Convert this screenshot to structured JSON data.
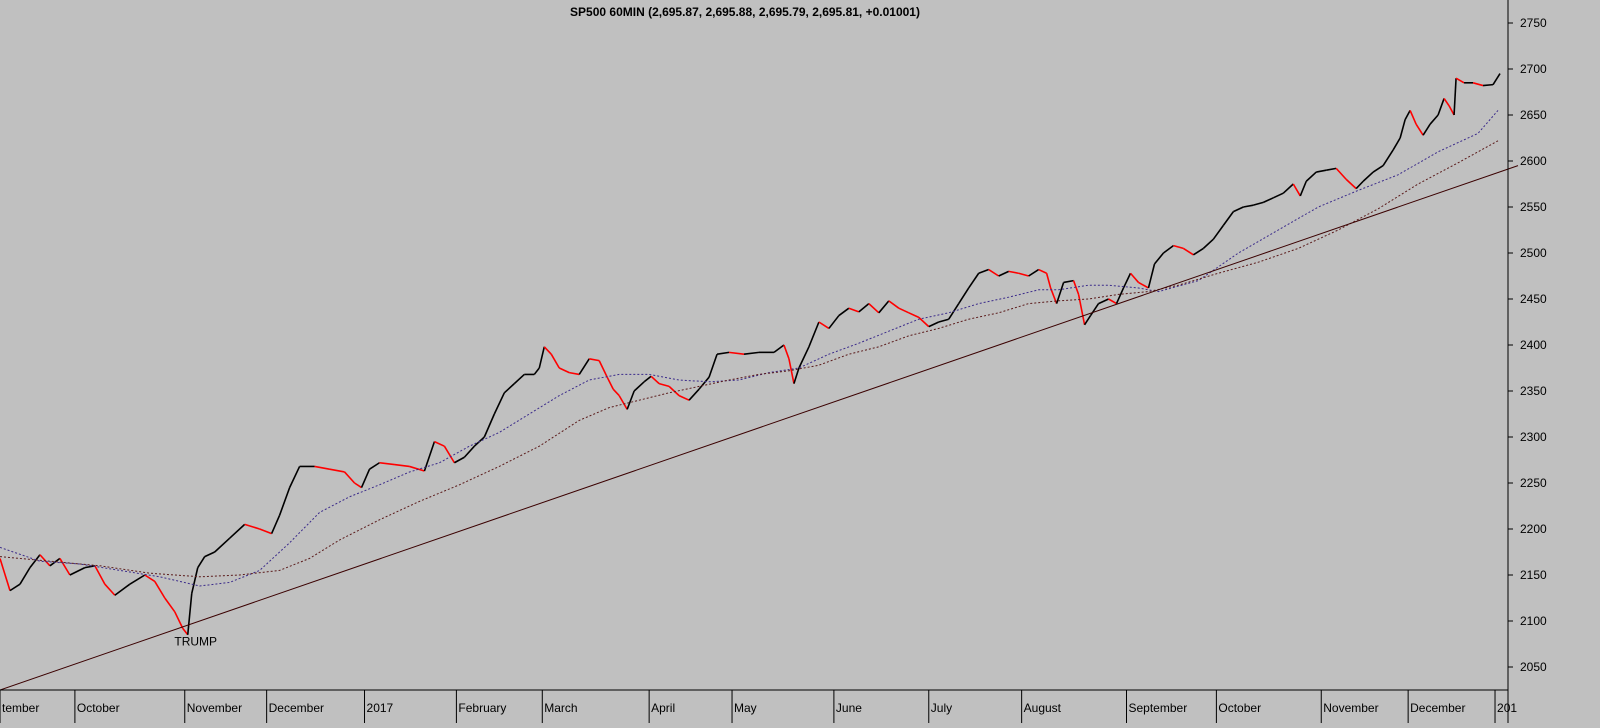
{
  "chart_data": {
    "type": "line",
    "title": "SP500 60MIN (2,695.87, 2,695.88, 2,695.79, 2,695.81, +0.01001)",
    "xlabel": "",
    "ylabel": "",
    "ylim": [
      2025,
      2775
    ],
    "yticks": [
      2050,
      2100,
      2150,
      2200,
      2250,
      2300,
      2350,
      2400,
      2450,
      2500,
      2550,
      2600,
      2650,
      2700,
      2750
    ],
    "grid": false,
    "legend": "none",
    "x_range": [
      0,
      1510
    ],
    "months": [
      {
        "label": "tember",
        "x": 0
      },
      {
        "label": "October",
        "x": 75
      },
      {
        "label": "November",
        "x": 185
      },
      {
        "label": "December",
        "x": 267
      },
      {
        "label": "2017",
        "x": 365
      },
      {
        "label": "February",
        "x": 457
      },
      {
        "label": "March",
        "x": 543
      },
      {
        "label": "April",
        "x": 650
      },
      {
        "label": "May",
        "x": 733
      },
      {
        "label": "June",
        "x": 835
      },
      {
        "label": "July",
        "x": 930
      },
      {
        "label": "August",
        "x": 1023
      },
      {
        "label": "September",
        "x": 1128
      },
      {
        "label": "October",
        "x": 1218
      },
      {
        "label": "November",
        "x": 1323
      },
      {
        "label": "December",
        "x": 1410
      },
      {
        "label": "201",
        "x": 1497
      }
    ],
    "series": [
      {
        "kind": "price",
        "color": "#000000",
        "down_color": "#ff0000",
        "points": [
          [
            0,
            2168
          ],
          [
            10,
            2133
          ],
          [
            20,
            2140
          ],
          [
            30,
            2158
          ],
          [
            40,
            2172
          ],
          [
            50,
            2160
          ],
          [
            60,
            2168
          ],
          [
            70,
            2150
          ],
          [
            85,
            2158
          ],
          [
            95,
            2160
          ],
          [
            105,
            2140
          ],
          [
            115,
            2128
          ],
          [
            130,
            2140
          ],
          [
            145,
            2150
          ],
          [
            155,
            2143
          ],
          [
            165,
            2125
          ],
          [
            175,
            2110
          ],
          [
            183,
            2092
          ],
          [
            188,
            2085
          ],
          [
            192,
            2130
          ],
          [
            198,
            2158
          ],
          [
            205,
            2170
          ],
          [
            215,
            2175
          ],
          [
            230,
            2190
          ],
          [
            245,
            2205
          ],
          [
            260,
            2200
          ],
          [
            272,
            2195
          ],
          [
            280,
            2215
          ],
          [
            290,
            2245
          ],
          [
            300,
            2268
          ],
          [
            315,
            2268
          ],
          [
            330,
            2265
          ],
          [
            345,
            2262
          ],
          [
            355,
            2250
          ],
          [
            362,
            2245
          ],
          [
            370,
            2265
          ],
          [
            380,
            2272
          ],
          [
            395,
            2270
          ],
          [
            410,
            2268
          ],
          [
            425,
            2263
          ],
          [
            435,
            2295
          ],
          [
            445,
            2290
          ],
          [
            455,
            2272
          ],
          [
            465,
            2278
          ],
          [
            475,
            2290
          ],
          [
            485,
            2300
          ],
          [
            495,
            2325
          ],
          [
            505,
            2348
          ],
          [
            515,
            2358
          ],
          [
            525,
            2368
          ],
          [
            535,
            2368
          ],
          [
            540,
            2375
          ],
          [
            545,
            2398
          ],
          [
            552,
            2390
          ],
          [
            560,
            2375
          ],
          [
            570,
            2370
          ],
          [
            580,
            2368
          ],
          [
            590,
            2385
          ],
          [
            600,
            2383
          ],
          [
            608,
            2365
          ],
          [
            614,
            2352
          ],
          [
            620,
            2345
          ],
          [
            628,
            2330
          ],
          [
            635,
            2350
          ],
          [
            645,
            2360
          ],
          [
            652,
            2366
          ],
          [
            660,
            2358
          ],
          [
            670,
            2355
          ],
          [
            680,
            2345
          ],
          [
            690,
            2340
          ],
          [
            700,
            2352
          ],
          [
            710,
            2365
          ],
          [
            718,
            2390
          ],
          [
            730,
            2392
          ],
          [
            745,
            2390
          ],
          [
            760,
            2392
          ],
          [
            775,
            2392
          ],
          [
            785,
            2400
          ],
          [
            790,
            2385
          ],
          [
            795,
            2358
          ],
          [
            800,
            2375
          ],
          [
            810,
            2398
          ],
          [
            820,
            2425
          ],
          [
            830,
            2418
          ],
          [
            840,
            2432
          ],
          [
            850,
            2440
          ],
          [
            860,
            2436
          ],
          [
            870,
            2445
          ],
          [
            880,
            2435
          ],
          [
            890,
            2448
          ],
          [
            900,
            2440
          ],
          [
            910,
            2435
          ],
          [
            920,
            2430
          ],
          [
            930,
            2420
          ],
          [
            940,
            2425
          ],
          [
            950,
            2428
          ],
          [
            960,
            2445
          ],
          [
            970,
            2462
          ],
          [
            980,
            2478
          ],
          [
            990,
            2482
          ],
          [
            1000,
            2475
          ],
          [
            1010,
            2480
          ],
          [
            1020,
            2478
          ],
          [
            1030,
            2475
          ],
          [
            1040,
            2482
          ],
          [
            1048,
            2478
          ],
          [
            1052,
            2462
          ],
          [
            1058,
            2445
          ],
          [
            1065,
            2468
          ],
          [
            1075,
            2470
          ],
          [
            1080,
            2455
          ],
          [
            1086,
            2422
          ],
          [
            1092,
            2432
          ],
          [
            1100,
            2445
          ],
          [
            1110,
            2450
          ],
          [
            1118,
            2445
          ],
          [
            1125,
            2462
          ],
          [
            1132,
            2478
          ],
          [
            1140,
            2468
          ],
          [
            1150,
            2462
          ],
          [
            1156,
            2488
          ],
          [
            1165,
            2500
          ],
          [
            1175,
            2508
          ],
          [
            1185,
            2505
          ],
          [
            1195,
            2498
          ],
          [
            1205,
            2505
          ],
          [
            1215,
            2515
          ],
          [
            1225,
            2530
          ],
          [
            1235,
            2545
          ],
          [
            1245,
            2550
          ],
          [
            1255,
            2552
          ],
          [
            1265,
            2555
          ],
          [
            1275,
            2560
          ],
          [
            1285,
            2565
          ],
          [
            1295,
            2575
          ],
          [
            1302,
            2562
          ],
          [
            1308,
            2578
          ],
          [
            1318,
            2588
          ],
          [
            1328,
            2590
          ],
          [
            1338,
            2592
          ],
          [
            1348,
            2580
          ],
          [
            1358,
            2570
          ],
          [
            1365,
            2578
          ],
          [
            1375,
            2588
          ],
          [
            1385,
            2595
          ],
          [
            1395,
            2612
          ],
          [
            1402,
            2625
          ],
          [
            1407,
            2645
          ],
          [
            1412,
            2655
          ],
          [
            1418,
            2640
          ],
          [
            1425,
            2628
          ],
          [
            1432,
            2640
          ],
          [
            1440,
            2650
          ],
          [
            1446,
            2668
          ],
          [
            1451,
            2660
          ],
          [
            1456,
            2650
          ],
          [
            1458,
            2690
          ],
          [
            1466,
            2685
          ],
          [
            1475,
            2685
          ],
          [
            1485,
            2682
          ],
          [
            1495,
            2683
          ],
          [
            1502,
            2695
          ]
        ]
      },
      {
        "kind": "moving average",
        "color": "#3a2a8a",
        "style": "dotted",
        "points": [
          [
            0,
            2180
          ],
          [
            40,
            2165
          ],
          [
            80,
            2162
          ],
          [
            120,
            2155
          ],
          [
            160,
            2148
          ],
          [
            200,
            2138
          ],
          [
            230,
            2142
          ],
          [
            260,
            2155
          ],
          [
            290,
            2185
          ],
          [
            320,
            2218
          ],
          [
            350,
            2235
          ],
          [
            380,
            2248
          ],
          [
            410,
            2262
          ],
          [
            440,
            2272
          ],
          [
            470,
            2290
          ],
          [
            500,
            2305
          ],
          [
            530,
            2325
          ],
          [
            560,
            2345
          ],
          [
            590,
            2362
          ],
          [
            620,
            2368
          ],
          [
            650,
            2368
          ],
          [
            680,
            2362
          ],
          [
            710,
            2360
          ],
          [
            740,
            2362
          ],
          [
            770,
            2370
          ],
          [
            800,
            2375
          ],
          [
            830,
            2390
          ],
          [
            860,
            2402
          ],
          [
            890,
            2415
          ],
          [
            920,
            2428
          ],
          [
            950,
            2435
          ],
          [
            980,
            2445
          ],
          [
            1010,
            2452
          ],
          [
            1040,
            2460
          ],
          [
            1060,
            2460
          ],
          [
            1090,
            2465
          ],
          [
            1110,
            2465
          ],
          [
            1140,
            2462
          ],
          [
            1160,
            2458
          ],
          [
            1200,
            2470
          ],
          [
            1240,
            2500
          ],
          [
            1280,
            2525
          ],
          [
            1320,
            2550
          ],
          [
            1360,
            2568
          ],
          [
            1400,
            2585
          ],
          [
            1440,
            2610
          ],
          [
            1480,
            2630
          ],
          [
            1500,
            2655
          ]
        ]
      },
      {
        "kind": "moving average",
        "color": "#5a1a1a",
        "style": "dotted",
        "points": [
          [
            0,
            2170
          ],
          [
            50,
            2165
          ],
          [
            100,
            2160
          ],
          [
            150,
            2152
          ],
          [
            200,
            2148
          ],
          [
            240,
            2150
          ],
          [
            280,
            2155
          ],
          [
            310,
            2168
          ],
          [
            340,
            2188
          ],
          [
            380,
            2210
          ],
          [
            420,
            2230
          ],
          [
            460,
            2248
          ],
          [
            500,
            2268
          ],
          [
            540,
            2290
          ],
          [
            580,
            2318
          ],
          [
            610,
            2332
          ],
          [
            640,
            2340
          ],
          [
            670,
            2348
          ],
          [
            700,
            2355
          ],
          [
            730,
            2362
          ],
          [
            760,
            2368
          ],
          [
            790,
            2372
          ],
          [
            820,
            2378
          ],
          [
            850,
            2390
          ],
          [
            880,
            2398
          ],
          [
            910,
            2410
          ],
          [
            940,
            2418
          ],
          [
            970,
            2428
          ],
          [
            1000,
            2435
          ],
          [
            1030,
            2445
          ],
          [
            1060,
            2448
          ],
          [
            1090,
            2450
          ],
          [
            1120,
            2455
          ],
          [
            1150,
            2458
          ],
          [
            1180,
            2465
          ],
          [
            1220,
            2478
          ],
          [
            1260,
            2490
          ],
          [
            1300,
            2505
          ],
          [
            1340,
            2525
          ],
          [
            1380,
            2548
          ],
          [
            1420,
            2575
          ],
          [
            1460,
            2598
          ],
          [
            1500,
            2622
          ]
        ]
      },
      {
        "kind": "trendline",
        "color": "#3a0000",
        "style": "solid",
        "points": [
          [
            0,
            2025
          ],
          [
            1520,
            2595
          ]
        ]
      }
    ],
    "annotations": [
      {
        "text": "TRUMP",
        "x": 196,
        "y": 2082
      }
    ]
  }
}
